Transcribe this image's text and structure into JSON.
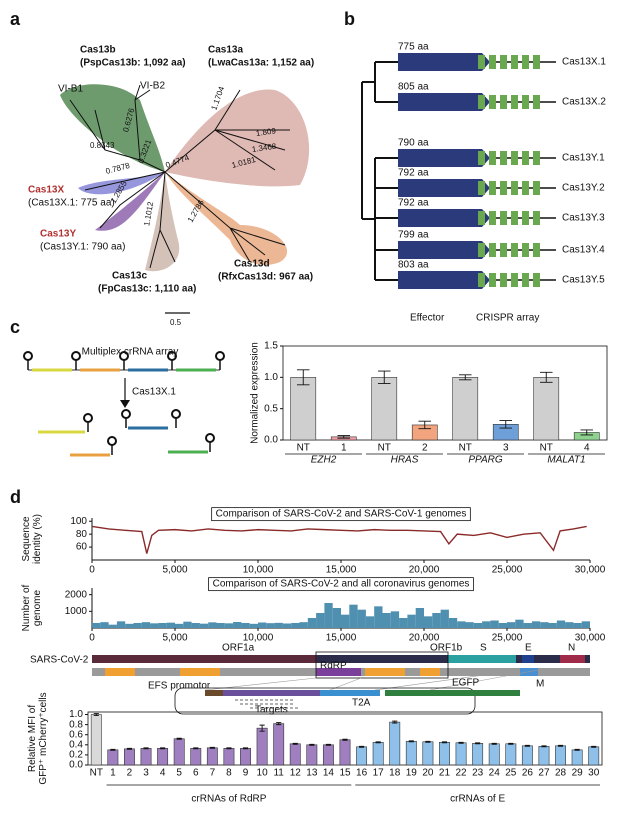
{
  "panels": [
    "a",
    "b",
    "c",
    "d"
  ],
  "phylogeny": {
    "clades": [
      {
        "name": "Cas13b",
        "detail": "(PspCas13b: 1,092 aa)"
      },
      {
        "name": "Cas13a",
        "detail": "(LwaCas13a: 1,152 aa)"
      },
      {
        "name": "Cas13X",
        "detail": "(Cas13X.1: 775 aa)"
      },
      {
        "name": "Cas13Y",
        "detail": "(Cas13Y.1: 790 aa)"
      },
      {
        "name": "Cas13c",
        "detail": "(FpCas13c: 1,110 aa)"
      },
      {
        "name": "Cas13d",
        "detail": "(RfxCas13d: 967 aa)"
      }
    ],
    "subtypes": [
      "VI-B1",
      "VI-B2"
    ],
    "branch_lengths": [
      "0.6276",
      "0.8343",
      "0.3221",
      "0.7878",
      "0.4774",
      "1.2855",
      "1.1012",
      "1.2786",
      "1.1704",
      "1.809",
      "1.3468",
      "1.0181"
    ],
    "scale": "0.5"
  },
  "cas13_tree": {
    "proteins": [
      {
        "name": "Cas13X.1",
        "length": "775 aa"
      },
      {
        "name": "Cas13X.2",
        "length": "805 aa"
      },
      {
        "name": "Cas13Y.1",
        "length": "790 aa"
      },
      {
        "name": "Cas13Y.2",
        "length": "792 aa"
      },
      {
        "name": "Cas13Y.3",
        "length": "792 aa"
      },
      {
        "name": "Cas13Y.4",
        "length": "799 aa"
      },
      {
        "name": "Cas13Y.5",
        "length": "803 aa"
      }
    ],
    "legend": [
      "Effector",
      "CRISPR array"
    ]
  },
  "crrna_diagram": {
    "title": "Multiplex crRNA array",
    "enzyme": "Cas13X.1"
  },
  "genome_map": {
    "genome": "SARS-CoV-2",
    "genes": [
      "ORF1a",
      "ORF1b",
      "S",
      "E",
      "M",
      "N"
    ],
    "region": "RdRP",
    "construct": {
      "promoter": "EFS promotor",
      "reporter": "EGFP",
      "linker": "T2A",
      "targets": "Targets"
    }
  },
  "chart_data": [
    {
      "type": "bar",
      "y_label": [
        "Normalized expression"
      ],
      "categories": [
        "NT",
        "1",
        "NT",
        "2",
        "NT",
        "3",
        "NT",
        "4"
      ],
      "groups": [
        "EZH2",
        "HRAS",
        "PPARG",
        "MALAT1"
      ],
      "values": [
        1.0,
        0.05,
        1.0,
        0.24,
        1.0,
        0.25,
        1.0,
        0.12
      ],
      "errors": [
        0.12,
        0.02,
        0.1,
        0.06,
        0.04,
        0.06,
        0.08,
        0.04
      ],
      "colors": [
        "#cfcfcf",
        "#f2a0a8",
        "#cfcfcf",
        "#f2a47e",
        "#cfcfcf",
        "#6f9fd8",
        "#cfcfcf",
        "#8fd18f"
      ],
      "ylim": [
        0,
        1.5
      ],
      "yticks": [
        {
          "value": 0,
          "label": "0.0"
        },
        0.5,
        {
          "value": 1,
          "label": "1.0"
        },
        1.5
      ]
    },
    {
      "type": "line",
      "title": "Comparison of SARS-CoV-2 and SARS-CoV-1 genomes",
      "y_label": [
        "Sequence",
        "identity (%)"
      ],
      "color": "#8b2a2a",
      "x": [
        0,
        1000,
        2000,
        3000,
        3300,
        3600,
        4000,
        5000,
        6000,
        7000,
        8000,
        9000,
        10000,
        11000,
        12000,
        13000,
        14000,
        15000,
        16000,
        17000,
        18000,
        19000,
        20000,
        21000,
        21500,
        22000,
        23000,
        24000,
        25000,
        26000,
        27000,
        27800,
        28200,
        29000,
        29800
      ],
      "values": [
        92,
        88,
        86,
        84,
        50,
        78,
        86,
        87,
        85,
        88,
        86,
        85,
        87,
        86,
        85,
        88,
        87,
        86,
        85,
        87,
        86,
        86,
        85,
        84,
        65,
        80,
        78,
        82,
        75,
        80,
        82,
        55,
        85,
        88,
        92
      ],
      "xlim": [
        0,
        30000
      ],
      "xticks": [
        0,
        {
          "value": 5000,
          "label": "5,000"
        },
        {
          "value": 10000,
          "label": "10,000"
        },
        {
          "value": 15000,
          "label": "15,000"
        },
        {
          "value": 20000,
          "label": "20,000"
        },
        {
          "value": 25000,
          "label": "25,000"
        },
        {
          "value": 30000,
          "label": "30,000"
        }
      ],
      "ylim": [
        40,
        105
      ],
      "yticks": [
        60,
        80,
        100
      ]
    },
    {
      "type": "histogram",
      "title": "Comparison of SARS-CoV-2 and all coronavirus genomes",
      "y_label": [
        "Number of",
        "genome"
      ],
      "color": "#4f8fb0",
      "bins": [
        0,
        500,
        1000,
        1500,
        2000,
        2500,
        3000,
        3500,
        4000,
        4500,
        5000,
        5500,
        6000,
        6500,
        7000,
        7500,
        8000,
        8500,
        9000,
        9500,
        10000,
        10500,
        11000,
        11500,
        12000,
        12500,
        13000,
        13500,
        14000,
        14500,
        15000,
        15500,
        16000,
        16500,
        17000,
        17500,
        18000,
        18500,
        19000,
        19500,
        20000,
        20500,
        21000,
        21500,
        22000,
        22500,
        23000,
        23500,
        24000,
        24500,
        25000,
        25500,
        26000,
        26500,
        27000,
        27500,
        28000,
        28500,
        29000,
        29500,
        30000
      ],
      "counts": [
        300,
        350,
        200,
        400,
        250,
        300,
        350,
        280,
        300,
        320,
        250,
        380,
        300,
        260,
        340,
        300,
        280,
        360,
        300,
        250,
        330,
        290,
        310,
        270,
        300,
        350,
        600,
        900,
        1500,
        1200,
        800,
        1400,
        1100,
        700,
        1300,
        900,
        1000,
        600,
        800,
        1200,
        700,
        900,
        1100,
        600,
        400,
        350,
        300,
        400,
        450,
        300,
        350,
        500,
        300,
        400,
        350,
        300,
        450,
        350,
        300,
        400
      ],
      "xlim": [
        0,
        30000
      ],
      "xticks": [
        0,
        {
          "value": 5000,
          "label": "5,000"
        },
        {
          "value": 10000,
          "label": "10,000"
        },
        {
          "value": 15000,
          "label": "15,000"
        },
        {
          "value": 20000,
          "label": "20,000"
        },
        {
          "value": 25000,
          "label": "25,000"
        },
        {
          "value": 30000,
          "label": "30,000"
        }
      ],
      "ylim": [
        0,
        2400
      ],
      "yticks": [
        1000,
        2000
      ]
    },
    {
      "type": "bar",
      "y_label": [
        "Relative MFI of",
        "GFP⁺ mCherry⁺cells"
      ],
      "categories": [
        "NT",
        "1",
        "2",
        "3",
        "4",
        "5",
        "6",
        "7",
        "8",
        "9",
        "10",
        "11",
        "12",
        "13",
        "14",
        "15",
        "16",
        "17",
        "18",
        "19",
        "20",
        "21",
        "22",
        "23",
        "24",
        "25",
        "26",
        "27",
        "28",
        "29",
        "30"
      ],
      "groups": [
        "crRNAs of RdRP",
        "crRNAs of E"
      ],
      "values": [
        1.0,
        0.3,
        0.32,
        0.33,
        0.33,
        0.52,
        0.33,
        0.34,
        0.33,
        0.33,
        0.73,
        0.82,
        0.42,
        0.4,
        0.4,
        0.5,
        0.36,
        0.45,
        0.85,
        0.47,
        0.46,
        0.45,
        0.44,
        0.43,
        0.42,
        0.42,
        0.38,
        0.37,
        0.38,
        0.3,
        0.36
      ],
      "errors": [
        0.02,
        0.01,
        0.01,
        0.01,
        0.01,
        0.01,
        0.01,
        0.01,
        0.01,
        0.01,
        0.06,
        0.02,
        0.01,
        0.01,
        0.01,
        0.01,
        0.01,
        0.01,
        0.02,
        0.01,
        0.01,
        0.01,
        0.01,
        0.01,
        0.01,
        0.01,
        0.01,
        0.01,
        0.01,
        0.01,
        0.01
      ],
      "colors": [
        "#d9d9d9",
        "#9f7fbf",
        "#9f7fbf",
        "#9f7fbf",
        "#9f7fbf",
        "#9f7fbf",
        "#9f7fbf",
        "#9f7fbf",
        "#9f7fbf",
        "#9f7fbf",
        "#9f7fbf",
        "#9f7fbf",
        "#9f7fbf",
        "#9f7fbf",
        "#9f7fbf",
        "#9f7fbf",
        "#8ec0ea",
        "#8ec0ea",
        "#8ec0ea",
        "#8ec0ea",
        "#8ec0ea",
        "#8ec0ea",
        "#8ec0ea",
        "#8ec0ea",
        "#8ec0ea",
        "#8ec0ea",
        "#8ec0ea",
        "#8ec0ea",
        "#8ec0ea",
        "#8ec0ea",
        "#8ec0ea"
      ],
      "ylim": [
        0,
        1.05
      ],
      "yticks": [
        {
          "value": 0,
          "label": "0.0"
        },
        0.2,
        0.4,
        0.6,
        0.8,
        {
          "value": 1,
          "label": "1.0"
        }
      ]
    }
  ]
}
